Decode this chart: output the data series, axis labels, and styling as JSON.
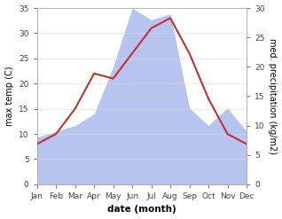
{
  "months": [
    "Jan",
    "Feb",
    "Mar",
    "Apr",
    "May",
    "Jun",
    "Jul",
    "Aug",
    "Sep",
    "Oct",
    "Nov",
    "Dec"
  ],
  "temperature": [
    8,
    10,
    15,
    22,
    21,
    26,
    31,
    33,
    26,
    17,
    10,
    8
  ],
  "precipitation": [
    8,
    9,
    10,
    12,
    20,
    30,
    28,
    29,
    13,
    10,
    13,
    9
  ],
  "temp_color": "#c43030",
  "precip_color": "#b8c4f0",
  "temp_ylim": [
    0,
    35
  ],
  "precip_ylim": [
    0,
    30
  ],
  "temp_yticks": [
    0,
    5,
    10,
    15,
    20,
    25,
    30,
    35
  ],
  "precip_yticks": [
    0,
    5,
    10,
    15,
    20,
    25,
    30
  ],
  "xlabel": "date (month)",
  "ylabel_left": "max temp (C)",
  "ylabel_right": "med. precipitation (kg/m2)",
  "background_color": "#ffffff",
  "fig_width": 3.18,
  "fig_height": 2.47,
  "dpi": 100
}
